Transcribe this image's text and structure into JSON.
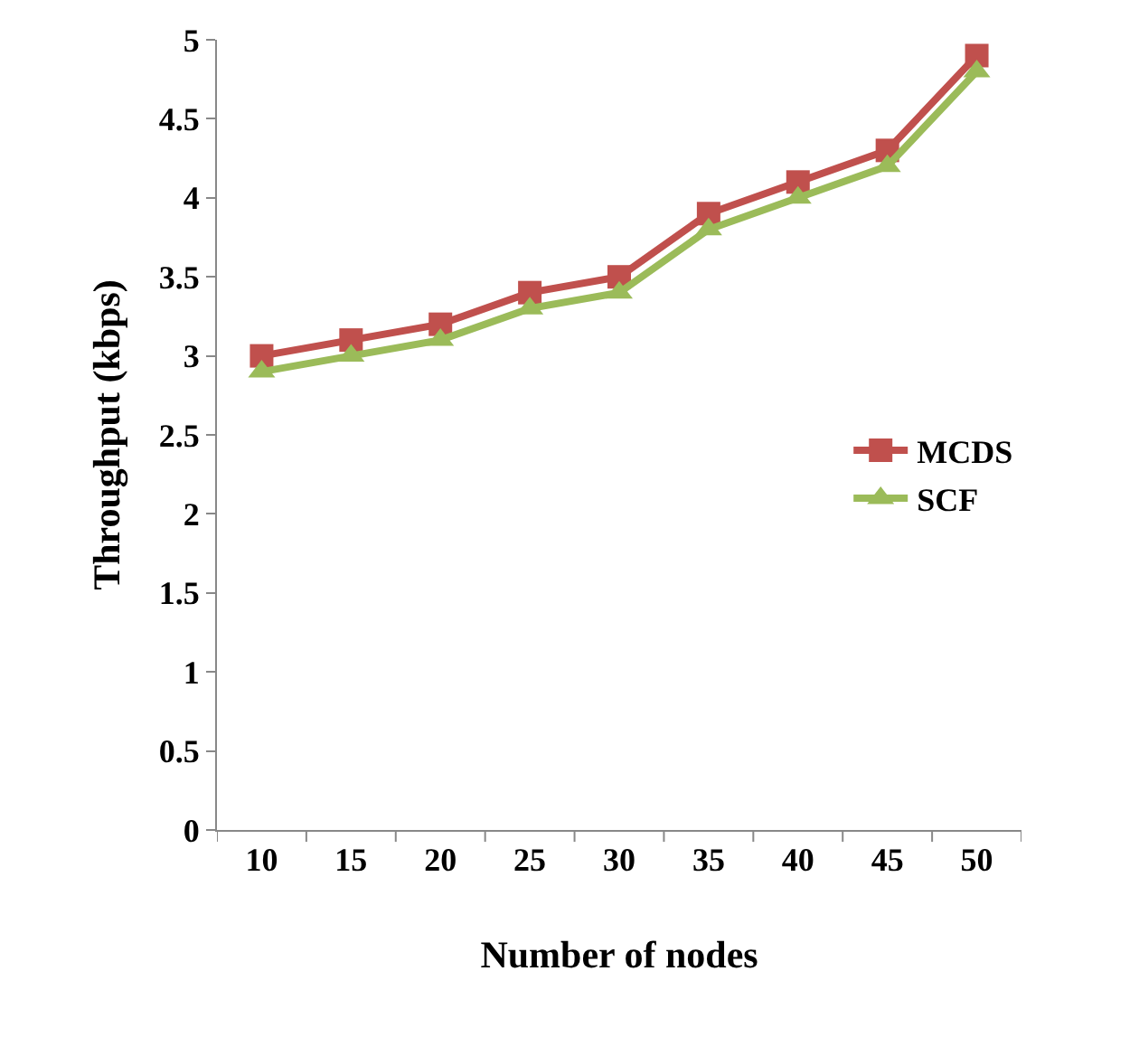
{
  "chart_data": {
    "type": "line",
    "xlabel": "Number of nodes",
    "ylabel": "Throughput (kbps)",
    "categories": [
      "10",
      "15",
      "20",
      "25",
      "30",
      "35",
      "40",
      "45",
      "50"
    ],
    "series": [
      {
        "name": "MCDS",
        "color": "#c0504d",
        "marker": "square",
        "values": [
          3.0,
          3.1,
          3.2,
          3.4,
          3.5,
          3.9,
          4.1,
          4.3,
          4.9
        ]
      },
      {
        "name": "SCF",
        "color": "#9bbb59",
        "marker": "triangle",
        "values": [
          2.9,
          3.0,
          3.1,
          3.3,
          3.4,
          3.8,
          4.0,
          4.2,
          4.8
        ]
      }
    ],
    "ylim": [
      0,
      5
    ],
    "yticks": [
      0,
      0.5,
      1,
      1.5,
      2,
      2.5,
      3,
      3.5,
      4,
      4.5,
      5
    ],
    "legend": "right",
    "line_style": "solid"
  }
}
